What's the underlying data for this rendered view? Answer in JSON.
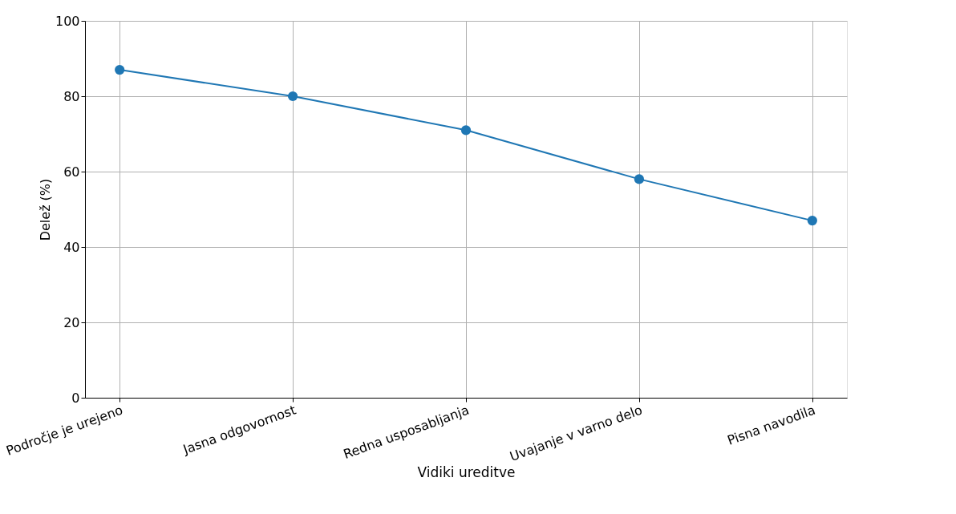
{
  "chart_data": {
    "type": "line",
    "xlabel": "Vidiki ureditve",
    "ylabel": "Delež (%)",
    "categories": [
      "Področje je urejeno",
      "Jasna odgovornost",
      "Redna usposabljanja",
      "Uvajanje v varno delo",
      "Pisna navodila"
    ],
    "series": [
      {
        "color": "#1f77b4",
        "values": [
          87,
          80,
          71,
          58,
          47
        ]
      }
    ],
    "ylim": [
      0,
      100
    ],
    "yticks": [
      0,
      20,
      40,
      60,
      80,
      100
    ],
    "grid": true,
    "marker": "circle",
    "line_style": "solid"
  }
}
